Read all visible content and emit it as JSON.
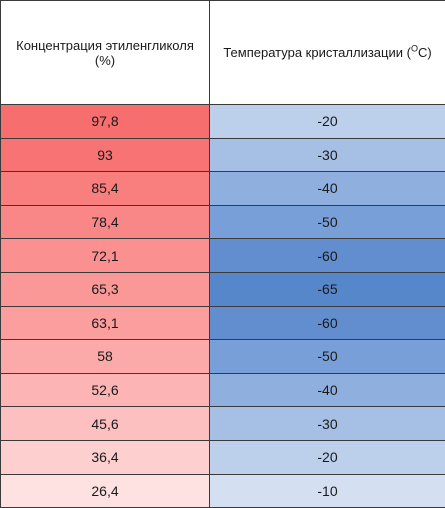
{
  "table": {
    "header": {
      "concentration": "Концентрация этиленгликоля (%)",
      "temperature_prefix": "Температура кристаллизации (",
      "temperature_sup": "O",
      "temperature_suffix": "C)"
    },
    "rows": [
      {
        "concentration": "97,8",
        "temperature": "-20",
        "conc_color": "#f76e6e",
        "temp_color": "#bdd0eb"
      },
      {
        "concentration": "93",
        "temperature": "-30",
        "conc_color": "#f87474",
        "temp_color": "#a6c0e5"
      },
      {
        "concentration": "85,4",
        "temperature": "-40",
        "conc_color": "#f97e7e",
        "temp_color": "#8fb0de"
      },
      {
        "concentration": "78,4",
        "temperature": "-50",
        "conc_color": "#f98787",
        "temp_color": "#789fd7"
      },
      {
        "concentration": "72,1",
        "temperature": "-60",
        "conc_color": "#fa9090",
        "temp_color": "#628ecf"
      },
      {
        "concentration": "65,3",
        "temperature": "-65",
        "conc_color": "#fa9898",
        "temp_color": "#5687cb"
      },
      {
        "concentration": "63,1",
        "temperature": "-60",
        "conc_color": "#fb9e9e",
        "temp_color": "#628ecf"
      },
      {
        "concentration": "58",
        "temperature": "-50",
        "conc_color": "#fca9a9",
        "temp_color": "#789fd7"
      },
      {
        "concentration": "52,6",
        "temperature": "-40",
        "conc_color": "#fcb4b4",
        "temp_color": "#8fb0de"
      },
      {
        "concentration": "45,6",
        "temperature": "-30",
        "conc_color": "#fdc0c0",
        "temp_color": "#a6c0e5"
      },
      {
        "concentration": "36,4",
        "temperature": "-20",
        "conc_color": "#fdcfcf",
        "temp_color": "#bdd0eb"
      },
      {
        "concentration": "26,4",
        "temperature": "-10",
        "conc_color": "#fee2e2",
        "temp_color": "#d4e0f2"
      }
    ]
  }
}
